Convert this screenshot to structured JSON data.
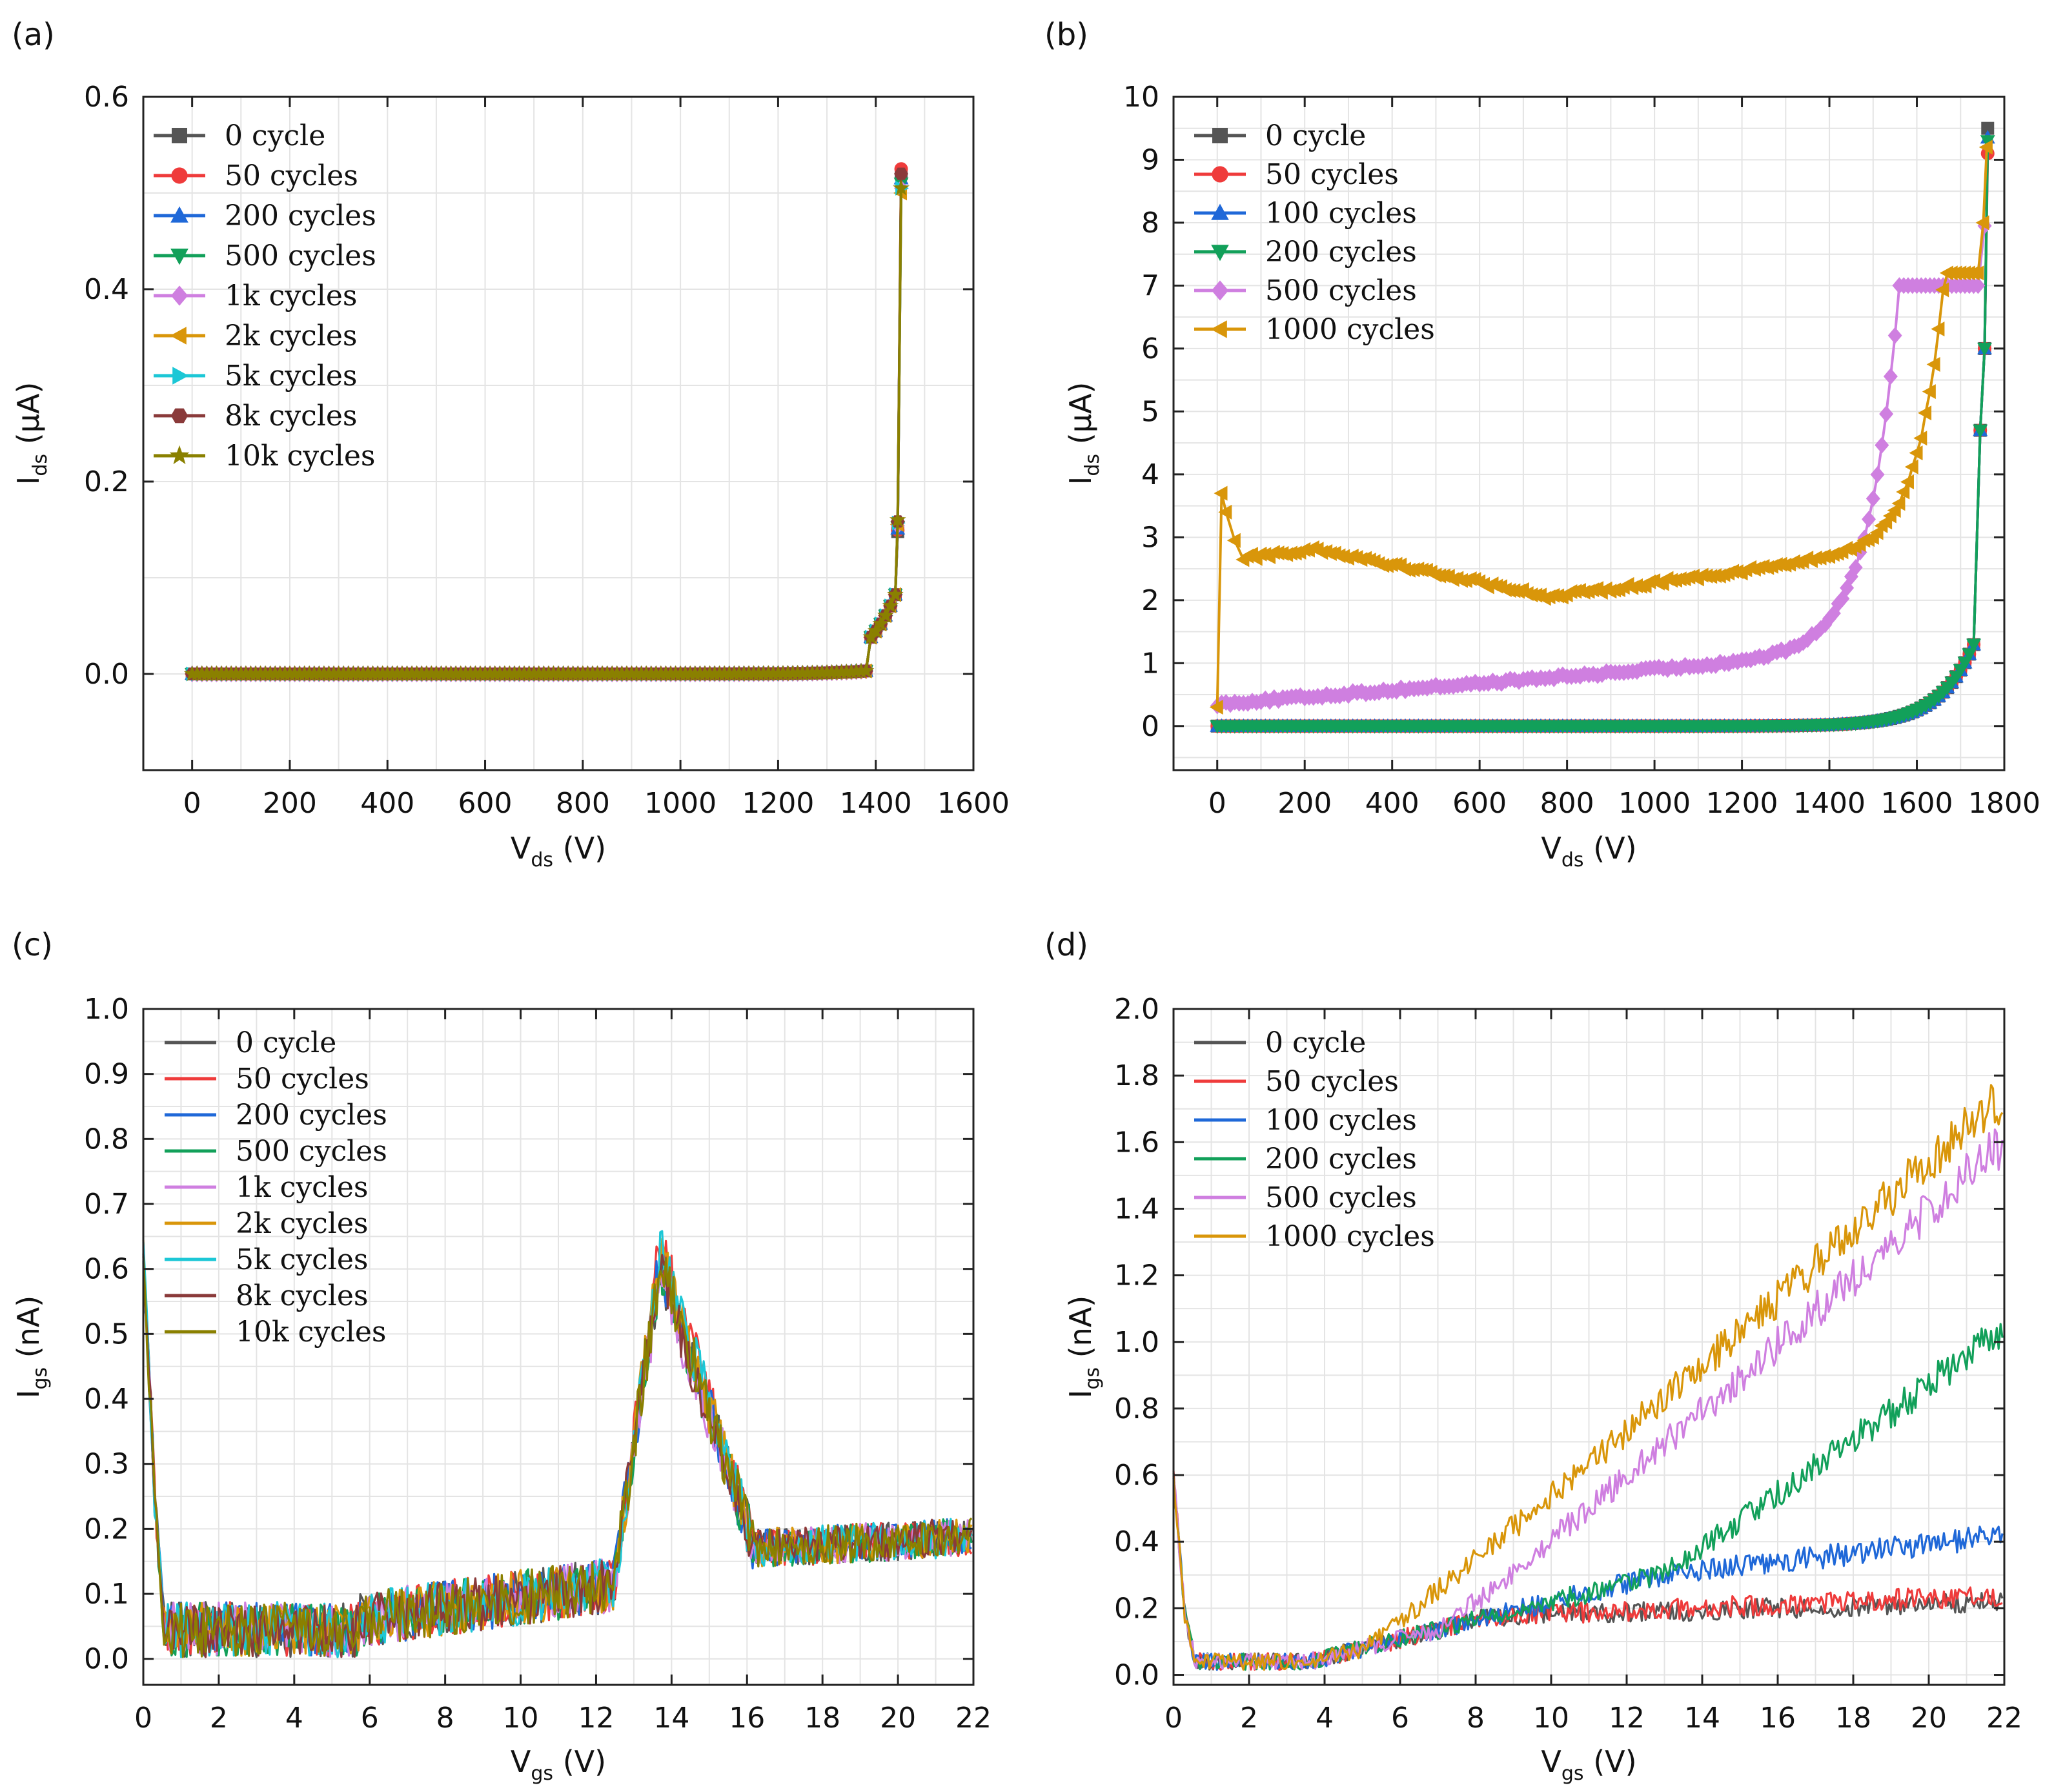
{
  "colors": {
    "c0": "#555555",
    "c50": "#ef3b3b",
    "c100": "#1f68d8",
    "c200": "#12a05a",
    "c500": "#cf7fe0",
    "c1000": "#d9960a",
    "c5k": "#1cc7d6",
    "c8k": "#8a3a3a",
    "c10k": "#8a8000"
  },
  "chart_data": [
    {
      "panel": "(a)",
      "type": "line",
      "markers": true,
      "xlabel_main": "V",
      "xlabel_sub": "ds",
      "xlabel_unit": " (V)",
      "ylabel_main": "I",
      "ylabel_sub": "ds",
      "ylabel_unit": " (μA)",
      "xlim": [
        -100,
        1600
      ],
      "ylim": [
        -0.1,
        0.6
      ],
      "xticks": [
        0,
        200,
        400,
        600,
        800,
        1000,
        1200,
        1400,
        1600
      ],
      "xtick_labels": [
        "0",
        "200",
        "400",
        "600",
        "800",
        "1000",
        "1200",
        "1400",
        "1600"
      ],
      "yticks": [
        0.0,
        0.2,
        0.4,
        0.6
      ],
      "ytick_labels": [
        "0.0",
        "0.2",
        "0.4",
        "0.6"
      ],
      "legend_position": "top-left",
      "series": [
        {
          "name": "0 cycle",
          "color": "#555555",
          "marker": "square",
          "end": 0.52
        },
        {
          "name": "50 cycles",
          "color": "#ef3b3b",
          "marker": "circle",
          "end": 0.525
        },
        {
          "name": "200 cycles",
          "color": "#1f68d8",
          "marker": "triangle-up",
          "end": 0.515
        },
        {
          "name": "500 cycles",
          "color": "#12a05a",
          "marker": "triangle-down",
          "end": 0.51
        },
        {
          "name": "1k cycles",
          "color": "#cf7fe0",
          "marker": "diamond",
          "end": 0.505
        },
        {
          "name": "2k cycles",
          "color": "#d9960a",
          "marker": "triangle-left",
          "end": 0.5
        },
        {
          "name": "5k cycles",
          "color": "#1cc7d6",
          "marker": "triangle-right",
          "end": 0.505
        },
        {
          "name": "8k cycles",
          "color": "#8a3a3a",
          "marker": "hexagon",
          "end": 0.52
        },
        {
          "name": "10k cycles",
          "color": "#8a8000",
          "marker": "star",
          "end": 0.505
        }
      ]
    },
    {
      "panel": "(b)",
      "type": "line",
      "markers": true,
      "xlabel_main": "V",
      "xlabel_sub": "ds",
      "xlabel_unit": " (V)",
      "ylabel_main": "I",
      "ylabel_sub": "ds",
      "ylabel_unit": " (μA)",
      "xlim": [
        -100,
        1800
      ],
      "ylim": [
        -0.7,
        10
      ],
      "xticks": [
        0,
        200,
        400,
        600,
        800,
        1000,
        1200,
        1400,
        1600,
        1800
      ],
      "xtick_labels": [
        "0",
        "200",
        "400",
        "600",
        "800",
        "1000",
        "1200",
        "1400",
        "1600",
        "1800"
      ],
      "yticks": [
        0,
        1,
        2,
        3,
        4,
        5,
        6,
        7,
        8,
        9,
        10
      ],
      "ytick_labels": [
        "0",
        "1",
        "2",
        "3",
        "4",
        "5",
        "6",
        "7",
        "8",
        "9",
        "10"
      ],
      "legend_position": "top-left",
      "series": [
        {
          "name": "0 cycle",
          "color": "#555555",
          "marker": "square",
          "end": 9.5
        },
        {
          "name": "50 cycles",
          "color": "#ef3b3b",
          "marker": "circle",
          "end": 9.1
        },
        {
          "name": "100 cycles",
          "color": "#1f68d8",
          "marker": "triangle-up",
          "end": 9.35
        },
        {
          "name": "200 cycles",
          "color": "#12a05a",
          "marker": "triangle-down",
          "end": 9.3
        },
        {
          "name": " 500 cycles",
          "color": "#cf7fe0",
          "marker": "diamond",
          "end": 7.95
        },
        {
          "name": "1000 cycles",
          "color": "#d9960a",
          "marker": "triangle-left",
          "end": 9.2
        }
      ]
    },
    {
      "panel": "(c)",
      "type": "line",
      "markers": false,
      "xlabel_main": "V",
      "xlabel_sub": "gs",
      "xlabel_unit": " (V)",
      "ylabel_main": "I",
      "ylabel_sub": "gs",
      "ylabel_unit": " (nA)",
      "xlim": [
        0,
        22
      ],
      "ylim": [
        -0.04,
        1.0
      ],
      "xticks": [
        0,
        2,
        4,
        6,
        8,
        10,
        12,
        14,
        16,
        18,
        20,
        22
      ],
      "xtick_labels": [
        "0",
        "2",
        "4",
        "6",
        "8",
        "10",
        "12",
        "14",
        "16",
        "18",
        "20",
        "22"
      ],
      "yticks": [
        0.0,
        0.1,
        0.2,
        0.3,
        0.4,
        0.5,
        0.6,
        0.7,
        0.8,
        0.9,
        1.0
      ],
      "ytick_labels": [
        "0.0",
        "0.1",
        "0.2",
        "0.3",
        "0.4",
        "0.5",
        "0.6",
        "0.7",
        "0.8",
        "0.9",
        "1.0"
      ],
      "legend_position": "top-left",
      "series": [
        {
          "name": "0 cycle",
          "color": "#555555",
          "peak": 0.6
        },
        {
          "name": "50 cycles",
          "color": "#ef3b3b",
          "peak": 0.64
        },
        {
          "name": "200 cycles",
          "color": "#1f68d8",
          "peak": 0.61
        },
        {
          "name": "500 cycles",
          "color": "#12a05a",
          "peak": 0.6
        },
        {
          "name": " 1k cycles",
          "color": "#cf7fe0",
          "peak": 0.59
        },
        {
          "name": "2k cycles",
          "color": "#d9960a",
          "peak": 0.62
        },
        {
          "name": "5k cycles",
          "color": "#1cc7d6",
          "peak": 0.63
        },
        {
          "name": "8k cycles",
          "color": "#8a3a3a",
          "peak": 0.6
        },
        {
          "name": "10k cycles",
          "color": "#8a8000",
          "peak": 0.61
        }
      ]
    },
    {
      "panel": "(d)",
      "type": "line",
      "markers": false,
      "xlabel_main": "V",
      "xlabel_sub": "gs",
      "xlabel_unit": " (V)",
      "ylabel_main": "I",
      "ylabel_sub": "gs",
      "ylabel_unit": " (nA)",
      "xlim": [
        0,
        22
      ],
      "ylim": [
        -0.03,
        2.0
      ],
      "xticks": [
        0,
        2,
        4,
        6,
        8,
        10,
        12,
        14,
        16,
        18,
        20,
        22
      ],
      "xtick_labels": [
        "0",
        "2",
        "4",
        "6",
        "8",
        "10",
        "12",
        "14",
        "16",
        "18",
        "20",
        "22"
      ],
      "yticks": [
        0.0,
        0.2,
        0.4,
        0.6,
        0.8,
        1.0,
        1.2,
        1.4,
        1.6,
        1.8,
        2.0
      ],
      "ytick_labels": [
        "0.0",
        "0.2",
        "0.4",
        "0.6",
        "0.8",
        "1.0",
        "1.2",
        "1.4",
        "1.6",
        "1.8",
        "2.0"
      ],
      "legend_position": "top-left",
      "series": [
        {
          "name": "0 cycle",
          "color": "#555555",
          "end": 0.22
        },
        {
          "name": "50 cycles",
          "color": "#ef3b3b",
          "end": 0.24
        },
        {
          "name": "100 cycles",
          "color": "#1f68d8",
          "end": 0.42
        },
        {
          "name": "200 cycles",
          "color": "#12a05a",
          "end": 1.04
        },
        {
          "name": " 500 cycles",
          "color": "#cf7fe0",
          "end": 1.6
        },
        {
          "name": "1000 cycles",
          "color": "#d9960a",
          "end": 1.74
        }
      ]
    }
  ]
}
